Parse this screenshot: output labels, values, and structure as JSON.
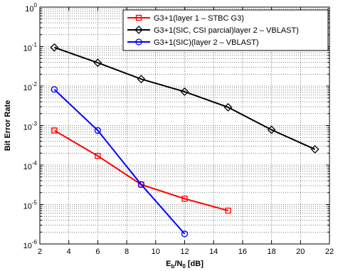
{
  "chart_data": {
    "type": "line",
    "title": "",
    "xlabel": {
      "main": "E",
      "sub1": "b",
      "mid": "/N",
      "sub2": "0",
      "tail": " [dB]"
    },
    "ylabel": "Bit Error Rate",
    "xlim": [
      2,
      22
    ],
    "ylim": [
      1e-06,
      1
    ],
    "yscale": "log",
    "grid": true,
    "legend_position": "top-right",
    "x_ticks": [
      2,
      4,
      6,
      8,
      10,
      12,
      14,
      16,
      18,
      20,
      22
    ],
    "y_ticks": [
      {
        "base": "10",
        "exp": "0",
        "value": 1
      },
      {
        "base": "10",
        "exp": "-1",
        "value": 0.1
      },
      {
        "base": "10",
        "exp": "-2",
        "value": 0.01
      },
      {
        "base": "10",
        "exp": "-3",
        "value": 0.001
      },
      {
        "base": "10",
        "exp": "-4",
        "value": 0.0001
      },
      {
        "base": "10",
        "exp": "-5",
        "value": 1e-05
      },
      {
        "base": "10",
        "exp": "-6",
        "value": 1e-06
      }
    ],
    "series": [
      {
        "name": "G3+1(layer 1 – STBC G3)",
        "color": "#ff0000",
        "marker": "square",
        "x": [
          3,
          6,
          9,
          12,
          15
        ],
        "y": [
          0.00075,
          0.00017,
          3.2e-05,
          1.4e-05,
          7e-06
        ]
      },
      {
        "name": "G3+1(SIC, CSI parcial)layer 2 – VBLAST)",
        "color": "#000000",
        "marker": "diamond",
        "x": [
          3,
          6,
          9,
          12,
          15,
          18,
          21
        ],
        "y": [
          0.095,
          0.039,
          0.015,
          0.0072,
          0.0029,
          0.00078,
          0.00025
        ]
      },
      {
        "name": "G3+1(SIC)(layer 2 – VBLAST)",
        "color": "#0000ff",
        "marker": "circle",
        "x": [
          3,
          6,
          9,
          12
        ],
        "y": [
          0.0082,
          0.00075,
          3.2e-05,
          1.8e-06
        ]
      }
    ]
  }
}
